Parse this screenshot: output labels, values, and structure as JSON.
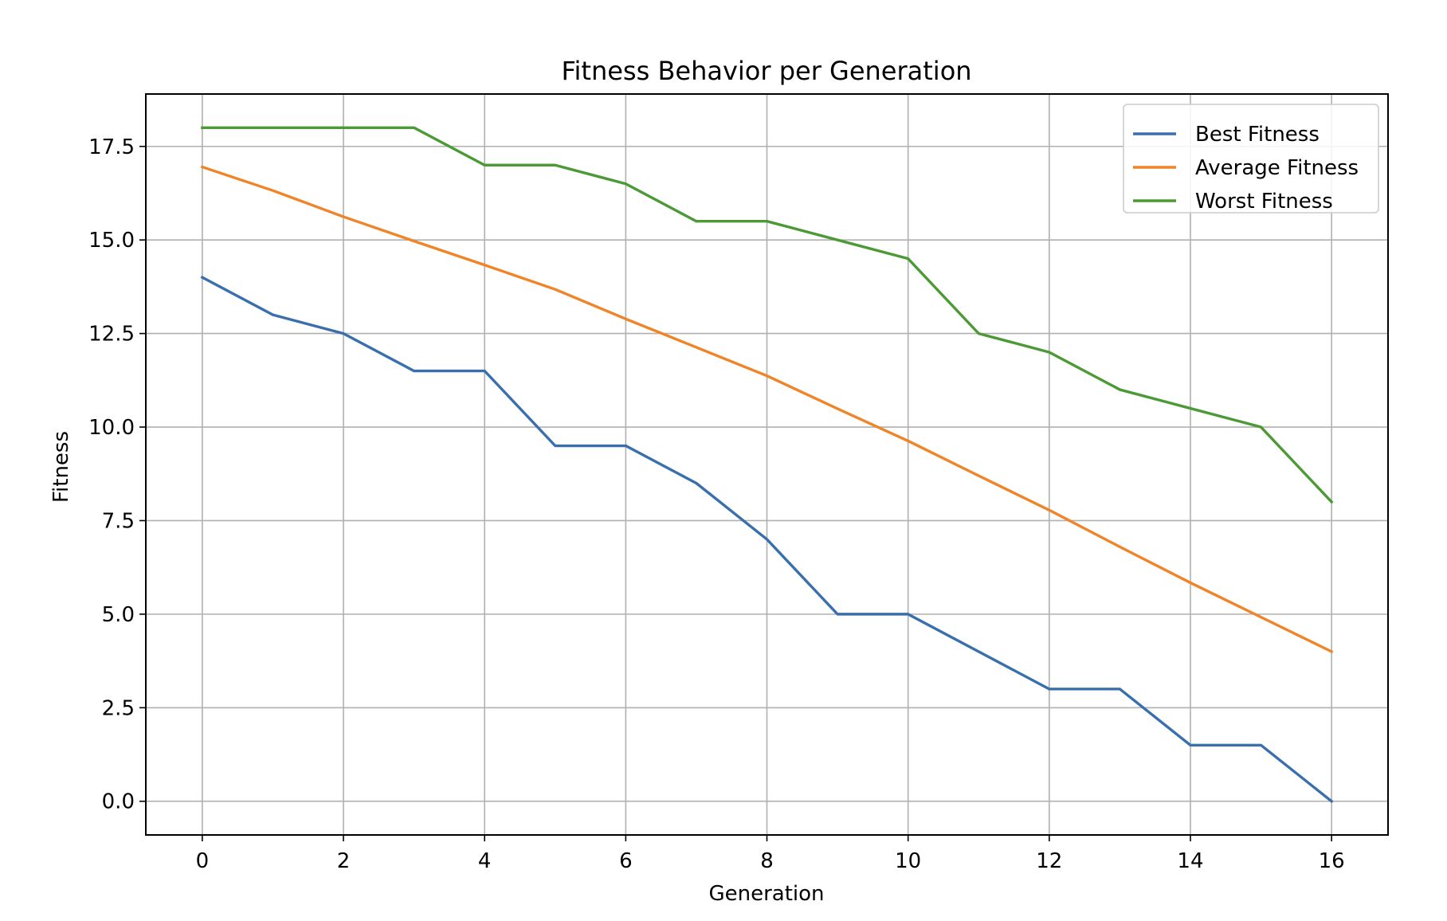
{
  "chart_data": {
    "type": "line",
    "title": "Fitness Behavior per Generation",
    "xlabel": "Generation",
    "ylabel": "Fitness",
    "xlim": [
      -0.8,
      16.8
    ],
    "ylim": [
      -0.9,
      18.9
    ],
    "xticks": [
      0,
      2,
      4,
      6,
      8,
      10,
      12,
      14,
      16
    ],
    "yticks": [
      0.0,
      2.5,
      5.0,
      7.5,
      10.0,
      12.5,
      15.0,
      17.5
    ],
    "xtick_labels": [
      "0",
      "2",
      "4",
      "6",
      "8",
      "10",
      "12",
      "14",
      "16"
    ],
    "ytick_labels": [
      "0.0",
      "2.5",
      "5.0",
      "7.5",
      "10.0",
      "12.5",
      "15.0",
      "17.5"
    ],
    "grid": true,
    "legend_position": "upper-right",
    "x": [
      0,
      1,
      2,
      3,
      4,
      5,
      6,
      7,
      8,
      9,
      10,
      11,
      12,
      13,
      14,
      15,
      16
    ],
    "series": [
      {
        "name": "Best Fitness",
        "color": "#3a6fad",
        "values": [
          14,
          13,
          12.5,
          11.5,
          11.5,
          9.5,
          9.5,
          8.5,
          7,
          5,
          5,
          4,
          3,
          3,
          1.5,
          1.5,
          0
        ]
      },
      {
        "name": "Average Fitness",
        "color": "#ef8428",
        "values": [
          16.95,
          16.32,
          15.62,
          14.97,
          14.33,
          13.68,
          12.89,
          12.13,
          11.37,
          10.49,
          9.63,
          8.7,
          7.78,
          6.8,
          5.84,
          4.92,
          4.0
        ]
      },
      {
        "name": "Worst Fitness",
        "color": "#4c9a36",
        "values": [
          18,
          18,
          18,
          18,
          17,
          17,
          16.5,
          15.5,
          15.5,
          15,
          14.5,
          12.5,
          12,
          11,
          10.5,
          10,
          8
        ]
      }
    ]
  }
}
